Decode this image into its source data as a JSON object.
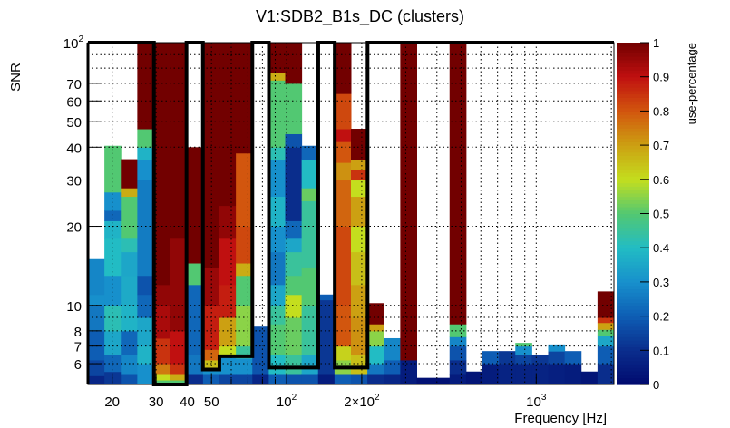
{
  "chart_data": {
    "type": "heatmap",
    "title": "V1:SDB2_B1s_DC (clusters)",
    "xlabel": "Frequency [Hz]",
    "ylabel": "SNR",
    "zlabel": "use-percentage",
    "xscale": "log",
    "yscale": "log",
    "xlim": [
      16,
      2048
    ],
    "ylim": [
      5,
      100
    ],
    "zlim": [
      0,
      1
    ],
    "grid": true,
    "x_bins": 32,
    "x_ticks": [
      {
        "value": 20,
        "label": "20"
      },
      {
        "value": 30,
        "label": "30"
      },
      {
        "value": 40,
        "label": "40"
      },
      {
        "value": 50,
        "label": "50"
      },
      {
        "value": 100,
        "label": "10",
        "exp": "2"
      },
      {
        "value": 200,
        "label": "2×10",
        "exp": "2"
      },
      {
        "value": 1000,
        "label": "10",
        "exp": "3"
      }
    ],
    "y_ticks": [
      {
        "value": 6,
        "label": "6"
      },
      {
        "value": 7,
        "label": "7"
      },
      {
        "value": 8,
        "label": "8"
      },
      {
        "value": 10,
        "label": "10"
      },
      {
        "value": 20,
        "label": "20"
      },
      {
        "value": 30,
        "label": "30"
      },
      {
        "value": 40,
        "label": "40"
      },
      {
        "value": 50,
        "label": "50"
      },
      {
        "value": 60,
        "label": "60"
      },
      {
        "value": 70,
        "label": "70"
      },
      {
        "value": 100,
        "label": "10",
        "exp": "2"
      }
    ],
    "z_ticks": [
      "0",
      "0.1",
      "0.2",
      "0.3",
      "0.4",
      "0.5",
      "0.6",
      "0.7",
      "0.8",
      "0.9",
      "1"
    ],
    "x_grid": [
      20,
      30,
      40,
      50,
      60,
      70,
      80,
      90,
      100,
      200,
      300,
      400,
      500,
      600,
      700,
      800,
      900,
      1000,
      2000
    ],
    "y_grid": [
      6,
      7,
      8,
      9,
      10,
      20,
      30,
      40,
      50,
      60,
      70,
      80,
      90
    ],
    "palette": [
      "#000a6e",
      "#0a2d8c",
      "#0e5db4",
      "#1790cc",
      "#22bcc4",
      "#52c872",
      "#c4de1e",
      "#cca012",
      "#d2560e",
      "#c01010",
      "#720000"
    ],
    "columns": [
      [
        [
          5,
          5.4,
          0.08
        ],
        [
          5.4,
          6.2,
          0.15
        ],
        [
          6.2,
          8,
          0.2
        ],
        [
          8,
          10,
          0.25
        ],
        [
          10,
          11,
          0.3
        ],
        [
          11,
          15,
          0.28
        ]
      ],
      [
        [
          5,
          5.6,
          0.12
        ],
        [
          5.6,
          6.5,
          0.22
        ],
        [
          6.5,
          8,
          0.35
        ],
        [
          8,
          10,
          0.42
        ],
        [
          10,
          13,
          0.3
        ],
        [
          13,
          18,
          0.4
        ],
        [
          18,
          21,
          0.38
        ],
        [
          21,
          23,
          0.22
        ],
        [
          23,
          27,
          0.3
        ],
        [
          27,
          40.5,
          0.5
        ]
      ],
      [
        [
          5,
          5.5,
          0.18
        ],
        [
          5.5,
          6.5,
          0.28
        ],
        [
          6.5,
          8,
          0.22
        ],
        [
          8,
          10,
          0.38
        ],
        [
          10,
          13,
          0.36
        ],
        [
          13,
          16,
          0.35
        ],
        [
          16,
          18,
          0.42
        ],
        [
          18,
          26,
          0.5
        ],
        [
          26,
          28,
          0.68
        ],
        [
          28,
          36,
          1
        ]
      ],
      [
        [
          5,
          6,
          0.3
        ],
        [
          6,
          7,
          0.38
        ],
        [
          7,
          9,
          0.35
        ],
        [
          9,
          11,
          0.22
        ],
        [
          11,
          13,
          0.18
        ],
        [
          13,
          30,
          0.26
        ],
        [
          30,
          36,
          0.3
        ],
        [
          36,
          40,
          0.38
        ],
        [
          40,
          47,
          0.5
        ],
        [
          47,
          100,
          1
        ]
      ],
      [
        [
          5,
          5.2,
          0.5
        ],
        [
          5.2,
          5.5,
          0.6
        ],
        [
          5.5,
          6,
          0.75
        ],
        [
          6,
          7.5,
          0.85
        ],
        [
          7.5,
          10,
          0.93
        ],
        [
          10,
          12,
          0.96
        ],
        [
          12,
          100,
          1
        ]
      ],
      [
        [
          5,
          5.2,
          0.5
        ],
        [
          5.2,
          5.5,
          0.68
        ],
        [
          5.5,
          6,
          0.85
        ],
        [
          6,
          8,
          0.9
        ],
        [
          8,
          18,
          0.96
        ],
        [
          18,
          100,
          1
        ]
      ],
      [
        [
          5,
          5.5,
          0.1
        ],
        [
          5.5,
          6.5,
          0.25
        ],
        [
          6.5,
          12,
          0.22
        ],
        [
          12,
          14.5,
          0.5
        ],
        [
          14.5,
          40,
          1
        ]
      ],
      [
        [
          5,
          5.5,
          0.2
        ],
        [
          5.5,
          5.8,
          0.3
        ],
        [
          5.8,
          6.2,
          0.65
        ],
        [
          6.2,
          6.8,
          0.78
        ],
        [
          6.8,
          10,
          0.88
        ],
        [
          10,
          14,
          0.95
        ],
        [
          14,
          100,
          1
        ]
      ],
      [
        [
          5,
          5.5,
          0.15
        ],
        [
          5.5,
          6.5,
          0.3
        ],
        [
          6.5,
          7,
          0.6
        ],
        [
          7,
          9,
          0.7
        ],
        [
          9,
          12,
          0.88
        ],
        [
          12,
          18,
          0.9
        ],
        [
          18,
          24,
          0.96
        ],
        [
          24,
          100,
          1
        ]
      ],
      [
        [
          5,
          5.5,
          0.15
        ],
        [
          5.5,
          6.3,
          0.3
        ],
        [
          6.3,
          7,
          0.45
        ],
        [
          7,
          10,
          0.55
        ],
        [
          10,
          13,
          0.5
        ],
        [
          13,
          14.5,
          0.68
        ],
        [
          14.5,
          20,
          0.82
        ],
        [
          20,
          38,
          0.8
        ],
        [
          38,
          100,
          1
        ]
      ],
      [
        [
          5,
          5.5,
          0.08
        ],
        [
          5.5,
          8.3,
          0.18
        ]
      ],
      [
        [
          5,
          5.5,
          0.2
        ],
        [
          5.5,
          6.5,
          0.4
        ],
        [
          6.5,
          8.5,
          0.5
        ],
        [
          8.5,
          10,
          0.45
        ],
        [
          10,
          12,
          0.35
        ],
        [
          12,
          16,
          0.25
        ],
        [
          16,
          20,
          0.3
        ],
        [
          20,
          26,
          0.38
        ],
        [
          26,
          36,
          0.3
        ],
        [
          36,
          40,
          0.42
        ],
        [
          40,
          72,
          0.5
        ],
        [
          72,
          77,
          0.68
        ],
        [
          77,
          100,
          1
        ]
      ],
      [
        [
          5,
          5.5,
          0.18
        ],
        [
          5.5,
          6.5,
          0.45
        ],
        [
          6.5,
          9,
          0.52
        ],
        [
          9,
          11,
          0.6
        ],
        [
          11,
          13,
          0.5
        ],
        [
          13,
          16,
          0.45
        ],
        [
          16,
          18,
          0.35
        ],
        [
          18,
          21,
          0.22
        ],
        [
          21,
          40,
          0.1
        ],
        [
          40,
          45,
          0.18
        ],
        [
          45,
          70,
          0.5
        ],
        [
          70,
          100,
          1
        ]
      ],
      [
        [
          5,
          5.5,
          0.18
        ],
        [
          5.5,
          6.5,
          0.35
        ],
        [
          6.5,
          10,
          0.45
        ],
        [
          10,
          14,
          0.5
        ],
        [
          14,
          25,
          0.45
        ],
        [
          25,
          28,
          0.52
        ],
        [
          28,
          36,
          0.4
        ],
        [
          36,
          40.5,
          0.22
        ]
      ],
      [
        [
          5,
          5.5,
          0.05
        ],
        [
          5.5,
          10.5,
          0.12
        ],
        [
          10.5,
          11,
          0.2
        ]
      ],
      [
        [
          5,
          5.5,
          0.2
        ],
        [
          5.5,
          6.2,
          0.55
        ],
        [
          6.2,
          7,
          0.62
        ],
        [
          7,
          10,
          0.8
        ],
        [
          10,
          20,
          0.82
        ],
        [
          20,
          30,
          0.78
        ],
        [
          30,
          35,
          0.72
        ],
        [
          35,
          42,
          0.8
        ],
        [
          42,
          47,
          0.9
        ],
        [
          47,
          64,
          0.82
        ],
        [
          64,
          100,
          1
        ]
      ],
      [
        [
          5,
          5.5,
          0.18
        ],
        [
          5.5,
          6.5,
          0.65
        ],
        [
          6.5,
          9,
          0.72
        ],
        [
          9,
          12,
          0.7
        ],
        [
          12,
          16,
          0.65
        ],
        [
          16,
          20,
          0.6
        ],
        [
          20,
          26,
          0.7
        ],
        [
          26,
          30,
          0.6
        ],
        [
          30,
          33,
          0.85
        ],
        [
          33,
          36,
          0.7
        ],
        [
          36,
          47,
          1
        ]
      ],
      [
        [
          5,
          5.5,
          0.1
        ],
        [
          5.5,
          6,
          0.25
        ],
        [
          6,
          7,
          0.4
        ],
        [
          7,
          8,
          0.55
        ],
        [
          8,
          8.5,
          0.7
        ],
        [
          8.5,
          10.2,
          1
        ]
      ],
      [
        [
          5,
          5.5,
          0.08
        ],
        [
          5.5,
          6.2,
          0.2
        ],
        [
          6.2,
          7.5,
          0.28
        ]
      ],
      [
        [
          5,
          6.2,
          0.05
        ],
        [
          6.2,
          100,
          1
        ]
      ],
      [
        [
          5,
          5.3,
          0.02
        ]
      ],
      [
        [
          5,
          5.3,
          0.02
        ]
      ],
      [
        [
          5,
          5.5,
          0.05
        ],
        [
          5.5,
          6.2,
          0.1
        ],
        [
          6.2,
          7,
          0.18
        ],
        [
          7,
          7.6,
          0.28
        ],
        [
          7.6,
          8.5,
          0.5
        ],
        [
          8.5,
          100,
          1
        ]
      ],
      [
        [
          5,
          5.6,
          0.03
        ]
      ],
      [
        [
          5,
          6,
          0.05
        ],
        [
          6,
          6.7,
          0.2
        ]
      ],
      [
        [
          5,
          6,
          0.07
        ],
        [
          6,
          6.7,
          0.12
        ]
      ],
      [
        [
          5,
          6,
          0.07
        ],
        [
          6,
          6.5,
          0.15
        ],
        [
          6.5,
          7,
          0.3
        ],
        [
          7,
          7.2,
          0.5
        ]
      ],
      [
        [
          5,
          6,
          0.07
        ],
        [
          6,
          6.5,
          0.12
        ]
      ],
      [
        [
          5,
          6,
          0.06
        ],
        [
          6,
          6.7,
          0.15
        ],
        [
          6.7,
          7.1,
          0.3
        ]
      ],
      [
        [
          5,
          6,
          0.05
        ],
        [
          6,
          6.7,
          0.2
        ]
      ],
      [
        [
          5,
          5.6,
          0.03
        ]
      ],
      [
        [
          5,
          6,
          0.1
        ],
        [
          6,
          7,
          0.2
        ],
        [
          7,
          7.7,
          0.35
        ],
        [
          7.7,
          8.1,
          0.5
        ],
        [
          8.1,
          8.6,
          0.7
        ],
        [
          8.6,
          9,
          0.85
        ],
        [
          9,
          11.3,
          1
        ]
      ]
    ],
    "cluster_outline": [
      [
        16,
        100
      ],
      [
        29.4,
        100
      ],
      [
        29.4,
        5
      ],
      [
        39.7,
        5
      ],
      [
        39.7,
        100
      ],
      [
        46.2,
        100
      ],
      [
        46.2,
        5.7
      ],
      [
        53.8,
        5.7
      ],
      [
        53.8,
        6.4
      ],
      [
        72.9,
        6.4
      ],
      [
        72.9,
        100
      ],
      [
        84.9,
        100
      ],
      [
        84.9,
        5.8
      ],
      [
        133.9,
        5.8
      ],
      [
        133.9,
        100
      ],
      [
        155.9,
        100
      ],
      [
        155.9,
        5.8
      ],
      [
        211,
        5.8
      ],
      [
        211,
        100
      ],
      [
        2048,
        100
      ]
    ]
  }
}
